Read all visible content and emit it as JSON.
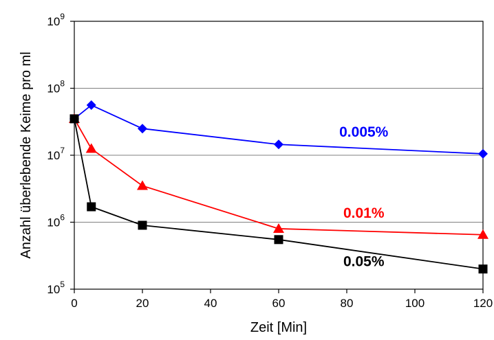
{
  "chart_data": {
    "type": "line",
    "title": "",
    "xlabel": "Zeit [Min]",
    "ylabel": "Anzahl überlebende Keime pro ml",
    "xlim": [
      0,
      120
    ],
    "ylim": [
      100000,
      1000000000
    ],
    "yscale": "log",
    "grid": "horizontal major gridlines",
    "legend": "inline labels next to series",
    "x_ticks": [
      0,
      20,
      40,
      60,
      80,
      100,
      120
    ],
    "x_tick_labels": [
      "0",
      "20",
      "40",
      "60",
      "80",
      "100",
      "120"
    ],
    "y_tick_labels": [
      {
        "base": "10",
        "exp": "5"
      },
      {
        "base": "10",
        "exp": "6"
      },
      {
        "base": "10",
        "exp": "7"
      },
      {
        "base": "10",
        "exp": "8"
      },
      {
        "base": "10",
        "exp": "9"
      }
    ],
    "series": [
      {
        "name": "0.005%",
        "color": "#0000ff",
        "marker": "diamond",
        "x": [
          0,
          5,
          20,
          60,
          120
        ],
        "y": [
          35000000,
          56000000,
          25000000,
          14500000,
          10500000
        ]
      },
      {
        "name": "0.01%",
        "color": "#ff0000",
        "marker": "triangle",
        "x": [
          0,
          5,
          20,
          60,
          120
        ],
        "y": [
          35000000,
          12500000,
          3500000,
          800000,
          650000
        ]
      },
      {
        "name": "0.05%",
        "color": "#000000",
        "marker": "square",
        "x": [
          0,
          5,
          20,
          60,
          120
        ],
        "y": [
          35000000,
          1700000,
          900000,
          550000,
          200000
        ]
      }
    ],
    "annotations": [
      {
        "series": "0.005%",
        "x": 85,
        "y": 19000000
      },
      {
        "series": "0.01%",
        "x": 85,
        "y": 1170000
      },
      {
        "series": "0.05%",
        "x": 85,
        "y": 220000
      }
    ]
  }
}
